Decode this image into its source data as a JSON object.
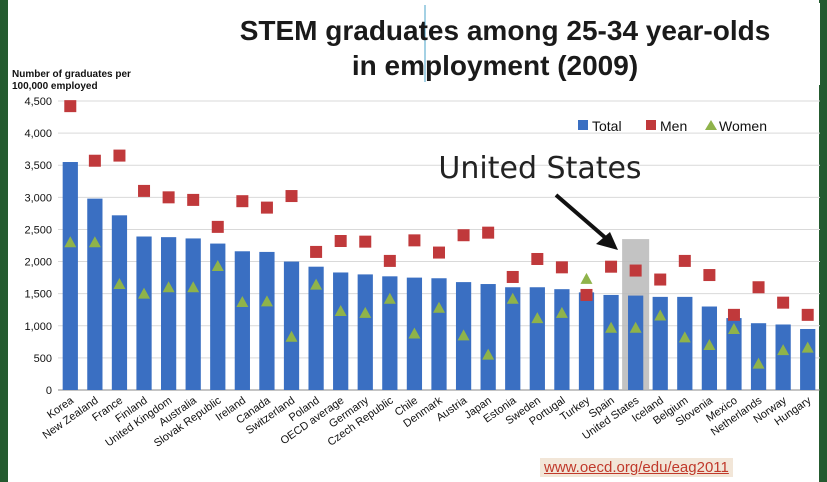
{
  "header": {
    "title_line1": "STEM graduates among 25-34 year-olds",
    "title_line2": "in employment (2009)",
    "ylabel_line1": "Number of graduates per",
    "ylabel_line2": "100,000 employed"
  },
  "annotation": {
    "callout": "United States",
    "highlight_category": "United States"
  },
  "footer": {
    "url": "www.oecd.org/edu/eag2011"
  },
  "colors": {
    "total": "#3a6fc2",
    "men": "#c0393b",
    "women": "#8fb34a",
    "highlight": "#b9b9b9"
  },
  "chart_data": {
    "type": "bar",
    "ylim": [
      0,
      4500
    ],
    "yticks": [
      "0",
      "500",
      "1,000",
      "1,500",
      "2,000",
      "2,500",
      "3,000",
      "3,500",
      "4,000",
      "4,500"
    ],
    "yticks_values": [
      0,
      500,
      1000,
      1500,
      2000,
      2500,
      3000,
      3500,
      4000,
      4500
    ],
    "legend": [
      "Total",
      "Men",
      "Women"
    ],
    "legend_position": "top-right",
    "categories": [
      "Korea",
      "New Zealand",
      "France",
      "Finland",
      "United Kingdom",
      "Australia",
      "Slovak Republic",
      "Ireland",
      "Canada",
      "Switzerland",
      "Poland",
      "OECD average",
      "Germany",
      "Czech Republic",
      "Chile",
      "Denmark",
      "Austria",
      "Japan",
      "Estonia",
      "Sweden",
      "Portugal",
      "Turkey",
      "Spain",
      "United States",
      "Iceland",
      "Belgium",
      "Slovenia",
      "Mexico",
      "Netherlands",
      "Norway",
      "Hungary"
    ],
    "series": [
      {
        "name": "Total",
        "values": [
          3550,
          2980,
          2720,
          2390,
          2380,
          2360,
          2280,
          2160,
          2150,
          2000,
          1920,
          1830,
          1800,
          1770,
          1750,
          1740,
          1680,
          1650,
          1600,
          1600,
          1570,
          1520,
          1480,
          1470,
          1450,
          1450,
          1300,
          1120,
          1040,
          1020,
          950
        ]
      },
      {
        "name": "Men",
        "values": [
          4420,
          3570,
          3650,
          3100,
          3000,
          2960,
          2540,
          2940,
          2840,
          3020,
          2150,
          2320,
          2310,
          2010,
          2330,
          2140,
          2410,
          2450,
          1760,
          2040,
          1910,
          1480,
          1920,
          1860,
          1720,
          2010,
          1790,
          1170,
          1600,
          1360,
          1170
        ]
      },
      {
        "name": "Women",
        "values": [
          2300,
          2300,
          1650,
          1500,
          1600,
          1600,
          1930,
          1370,
          1380,
          830,
          1640,
          1230,
          1200,
          1420,
          880,
          1280,
          850,
          550,
          1420,
          1120,
          1200,
          1730,
          970,
          970,
          1160,
          820,
          700,
          950,
          410,
          620,
          660
        ]
      }
    ]
  }
}
